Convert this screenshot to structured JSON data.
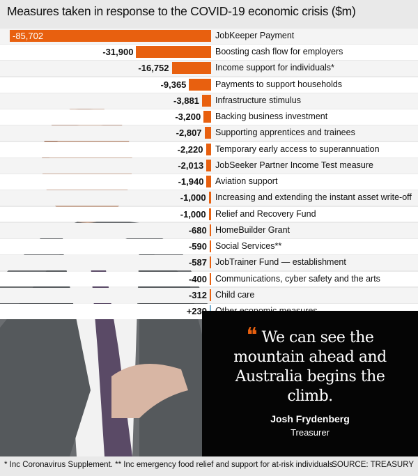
{
  "chart_data": {
    "type": "bar",
    "orientation": "horizontal",
    "title": "Measures taken in response to the COVID-19 economic crisis ($m)",
    "categories": [
      "JobKeeper Payment",
      "Boosting cash flow for employers",
      "Income support for individuals*",
      "Payments to support households",
      "Infrastructure stimulus",
      "Backing business investment",
      "Supporting apprentices and trainees",
      "Temporary early access to superannuation",
      "JobSeeker Partner Income Test measure",
      "Aviation support",
      "Increasing and extending the instant asset write-off",
      "Relief and Recovery Fund",
      "HomeBuilder Grant",
      "Social Services**",
      "JobTrainer Fund — establishment",
      "Communications, cyber safety and the arts",
      "Child care",
      "Other economic measures"
    ],
    "values": [
      -85702,
      -31900,
      -16752,
      -9365,
      -3881,
      -3200,
      -2807,
      -2220,
      -2013,
      -1940,
      -1000,
      -1000,
      -680,
      -590,
      -587,
      -400,
      -312,
      239
    ],
    "value_labels": [
      "-85,702",
      "-31,900",
      "-16,752",
      "-9,365",
      "-3,881",
      "-3,200",
      "-2,807",
      "-2,220",
      "-2,013",
      "-1,940",
      "-1,000",
      "-1,000",
      "-680",
      "-590",
      "-587",
      "-400",
      "-312",
      "+239"
    ],
    "colors": {
      "negative": "#e8600f",
      "positive": "#7ab0d0"
    }
  },
  "quote": {
    "mark": "❝",
    "text": "We can see the mountain ahead and Australia begins the climb.",
    "name": "Josh Frydenberg",
    "role": "Treasurer"
  },
  "footer": {
    "note": "* Inc Coronavirus Supplement. ** Inc emergency food relief and support for at-risk individuals.",
    "source": "SOURCE: TREASURY"
  }
}
